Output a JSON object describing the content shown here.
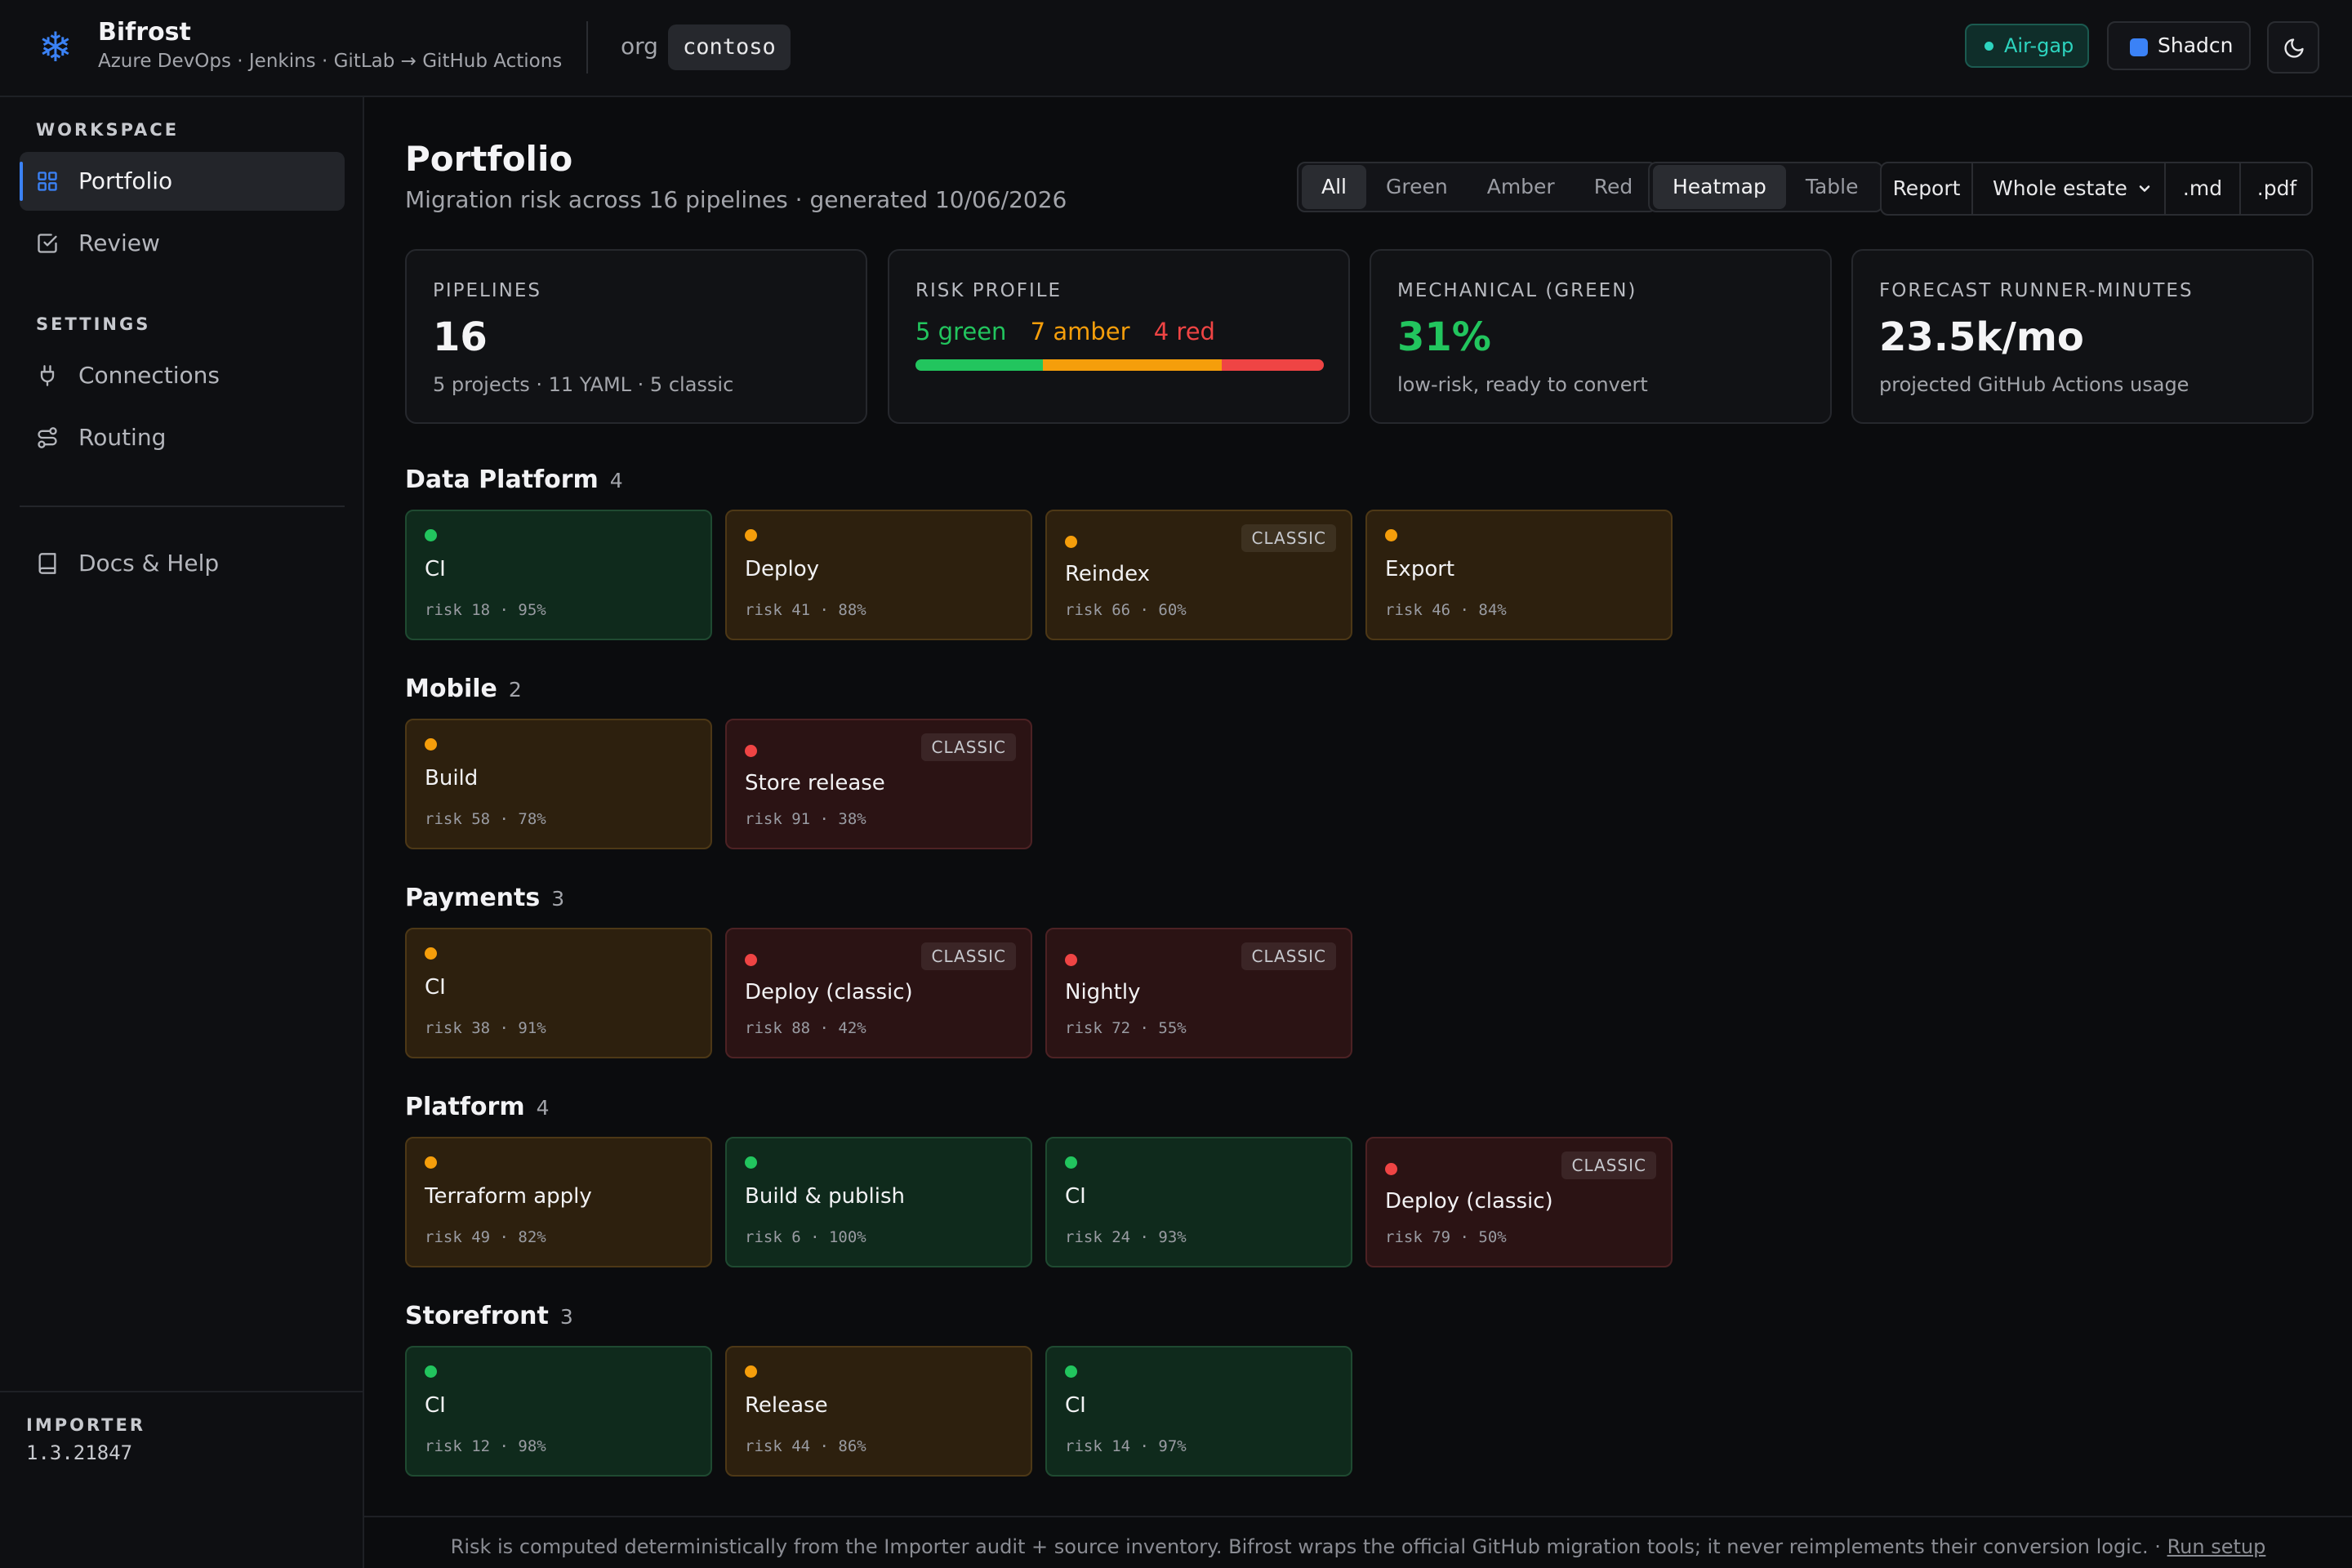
{
  "header": {
    "title": "Bifrost",
    "subtitle": "Azure DevOps · Jenkins · GitLab → GitHub Actions",
    "org_label": "org",
    "org_value": "contoso",
    "airgap_label": "Air-gap",
    "theme_label": "Shadcn"
  },
  "sidebar": {
    "workspace_heading": "WORKSPACE",
    "portfolio": "Portfolio",
    "review": "Review",
    "settings_heading": "SETTINGS",
    "connections": "Connections",
    "routing": "Routing",
    "docs": "Docs & Help",
    "importer_label": "IMPORTER",
    "importer_version": "1.3.21847"
  },
  "page": {
    "title": "Portfolio",
    "subtitle": "Migration risk across 16 pipelines · generated 10/06/2026"
  },
  "filters": [
    "All",
    "Green",
    "Amber",
    "Red"
  ],
  "views": [
    "Heatmap",
    "Table"
  ],
  "report": {
    "label": "Report",
    "scope": "Whole estate",
    "md": ".md",
    "pdf": ".pdf"
  },
  "stats": {
    "pipelines": {
      "label": "PIPELINES",
      "value": "16",
      "detail": "5 projects · 11 YAML · 5 classic"
    },
    "risk": {
      "label": "RISK PROFILE",
      "green": "5 green",
      "amber": "7 amber",
      "red": "4 red",
      "green_count": 5,
      "amber_count": 7,
      "red_count": 4
    },
    "mechanical": {
      "label": "MECHANICAL (GREEN)",
      "value": "31%",
      "detail": "low-risk, ready to convert"
    },
    "forecast": {
      "label": "FORECAST RUNNER-MINUTES",
      "value": "23.5k/mo",
      "detail": "projected GitHub Actions usage"
    }
  },
  "colors": {
    "green": "#22c55e",
    "amber": "#f59e0b",
    "red": "#ef4444",
    "accent": "#3b82f6",
    "airgap": "#2dd4bf"
  },
  "groups": [
    {
      "name": "Data Platform",
      "count": "4",
      "tiles": [
        {
          "name": "CI",
          "status": "green",
          "meta": "risk 18 · 95%",
          "classic": false
        },
        {
          "name": "Deploy",
          "status": "amber",
          "meta": "risk 41 · 88%",
          "classic": false
        },
        {
          "name": "Reindex",
          "status": "amber",
          "meta": "risk 66 · 60%",
          "classic": true
        },
        {
          "name": "Export",
          "status": "amber",
          "meta": "risk 46 · 84%",
          "classic": false
        }
      ]
    },
    {
      "name": "Mobile",
      "count": "2",
      "tiles": [
        {
          "name": "Build",
          "status": "amber",
          "meta": "risk 58 · 78%",
          "classic": false
        },
        {
          "name": "Store release",
          "status": "red",
          "meta": "risk 91 · 38%",
          "classic": true
        }
      ]
    },
    {
      "name": "Payments",
      "count": "3",
      "tiles": [
        {
          "name": "CI",
          "status": "amber",
          "meta": "risk 38 · 91%",
          "classic": false
        },
        {
          "name": "Deploy (classic)",
          "status": "red",
          "meta": "risk 88 · 42%",
          "classic": true
        },
        {
          "name": "Nightly",
          "status": "red",
          "meta": "risk 72 · 55%",
          "classic": true
        }
      ]
    },
    {
      "name": "Platform",
      "count": "4",
      "tiles": [
        {
          "name": "Terraform apply",
          "status": "amber",
          "meta": "risk 49 · 82%",
          "classic": false
        },
        {
          "name": "Build & publish",
          "status": "green",
          "meta": "risk 6 · 100%",
          "classic": false
        },
        {
          "name": "CI",
          "status": "green",
          "meta": "risk 24 · 93%",
          "classic": false
        },
        {
          "name": "Deploy (classic)",
          "status": "red",
          "meta": "risk 79 · 50%",
          "classic": true
        }
      ]
    },
    {
      "name": "Storefront",
      "count": "3",
      "tiles": [
        {
          "name": "CI",
          "status": "green",
          "meta": "risk 12 · 98%",
          "classic": false
        },
        {
          "name": "Release",
          "status": "amber",
          "meta": "risk 44 · 86%",
          "classic": false
        },
        {
          "name": "CI",
          "status": "green",
          "meta": "risk 14 · 97%",
          "classic": false
        }
      ]
    }
  ],
  "classic_badge": "CLASSIC",
  "footer": {
    "text": "Risk is computed deterministically from the Importer audit + source inventory. Bifrost wraps the official GitHub migration tools; it never reimplements their conversion logic. ·",
    "link": "Run setup"
  }
}
